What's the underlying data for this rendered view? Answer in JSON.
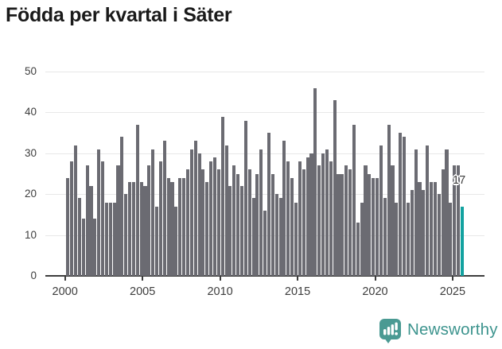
{
  "title": "Födda per kvartal i Säter",
  "chart_data": {
    "type": "bar",
    "title": "Födda per kvartal i Säter",
    "xlabel": "",
    "ylabel": "",
    "x_period": "quarterly",
    "x_start": "2000Q1",
    "x_end": "2025Q3",
    "x_tick_labels": [
      "2000",
      "2005",
      "2010",
      "2015",
      "2020",
      "2025"
    ],
    "y_ticks": [
      0,
      10,
      20,
      30,
      40,
      50
    ],
    "ylim": [
      0,
      50
    ],
    "grid": true,
    "bar_color": "#6b6b72",
    "highlight_color": "#12a2a0",
    "series": [
      {
        "name": "Födda per kvartal",
        "values": [
          24,
          28,
          32,
          19,
          14,
          27,
          22,
          14,
          31,
          28,
          18,
          18,
          18,
          27,
          34,
          20,
          23,
          23,
          37,
          23,
          22,
          27,
          31,
          17,
          28,
          33,
          24,
          23,
          17,
          24,
          24,
          26,
          31,
          33,
          30,
          26,
          23,
          28,
          29,
          26,
          39,
          32,
          22,
          27,
          25,
          22,
          38,
          26,
          19,
          25,
          31,
          16,
          35,
          25,
          20,
          19,
          33,
          28,
          24,
          18,
          28,
          26,
          29,
          30,
          46,
          27,
          30,
          31,
          28,
          43,
          25,
          25,
          27,
          26,
          37,
          13,
          18,
          27,
          25,
          24,
          24,
          32,
          19,
          37,
          27,
          18,
          35,
          34,
          18,
          21,
          31,
          23,
          21,
          32,
          23,
          23,
          20,
          26,
          31,
          18,
          27,
          27,
          17
        ]
      }
    ],
    "highlight": {
      "index": 102,
      "quarter": "2025Q3",
      "value": 17,
      "label": "17"
    }
  },
  "annotation": {
    "label": "17"
  },
  "footer": {
    "brand": "Newsworthy",
    "brand_text_color": "#3d948e",
    "brand_icon_color": "#4a9a93"
  }
}
